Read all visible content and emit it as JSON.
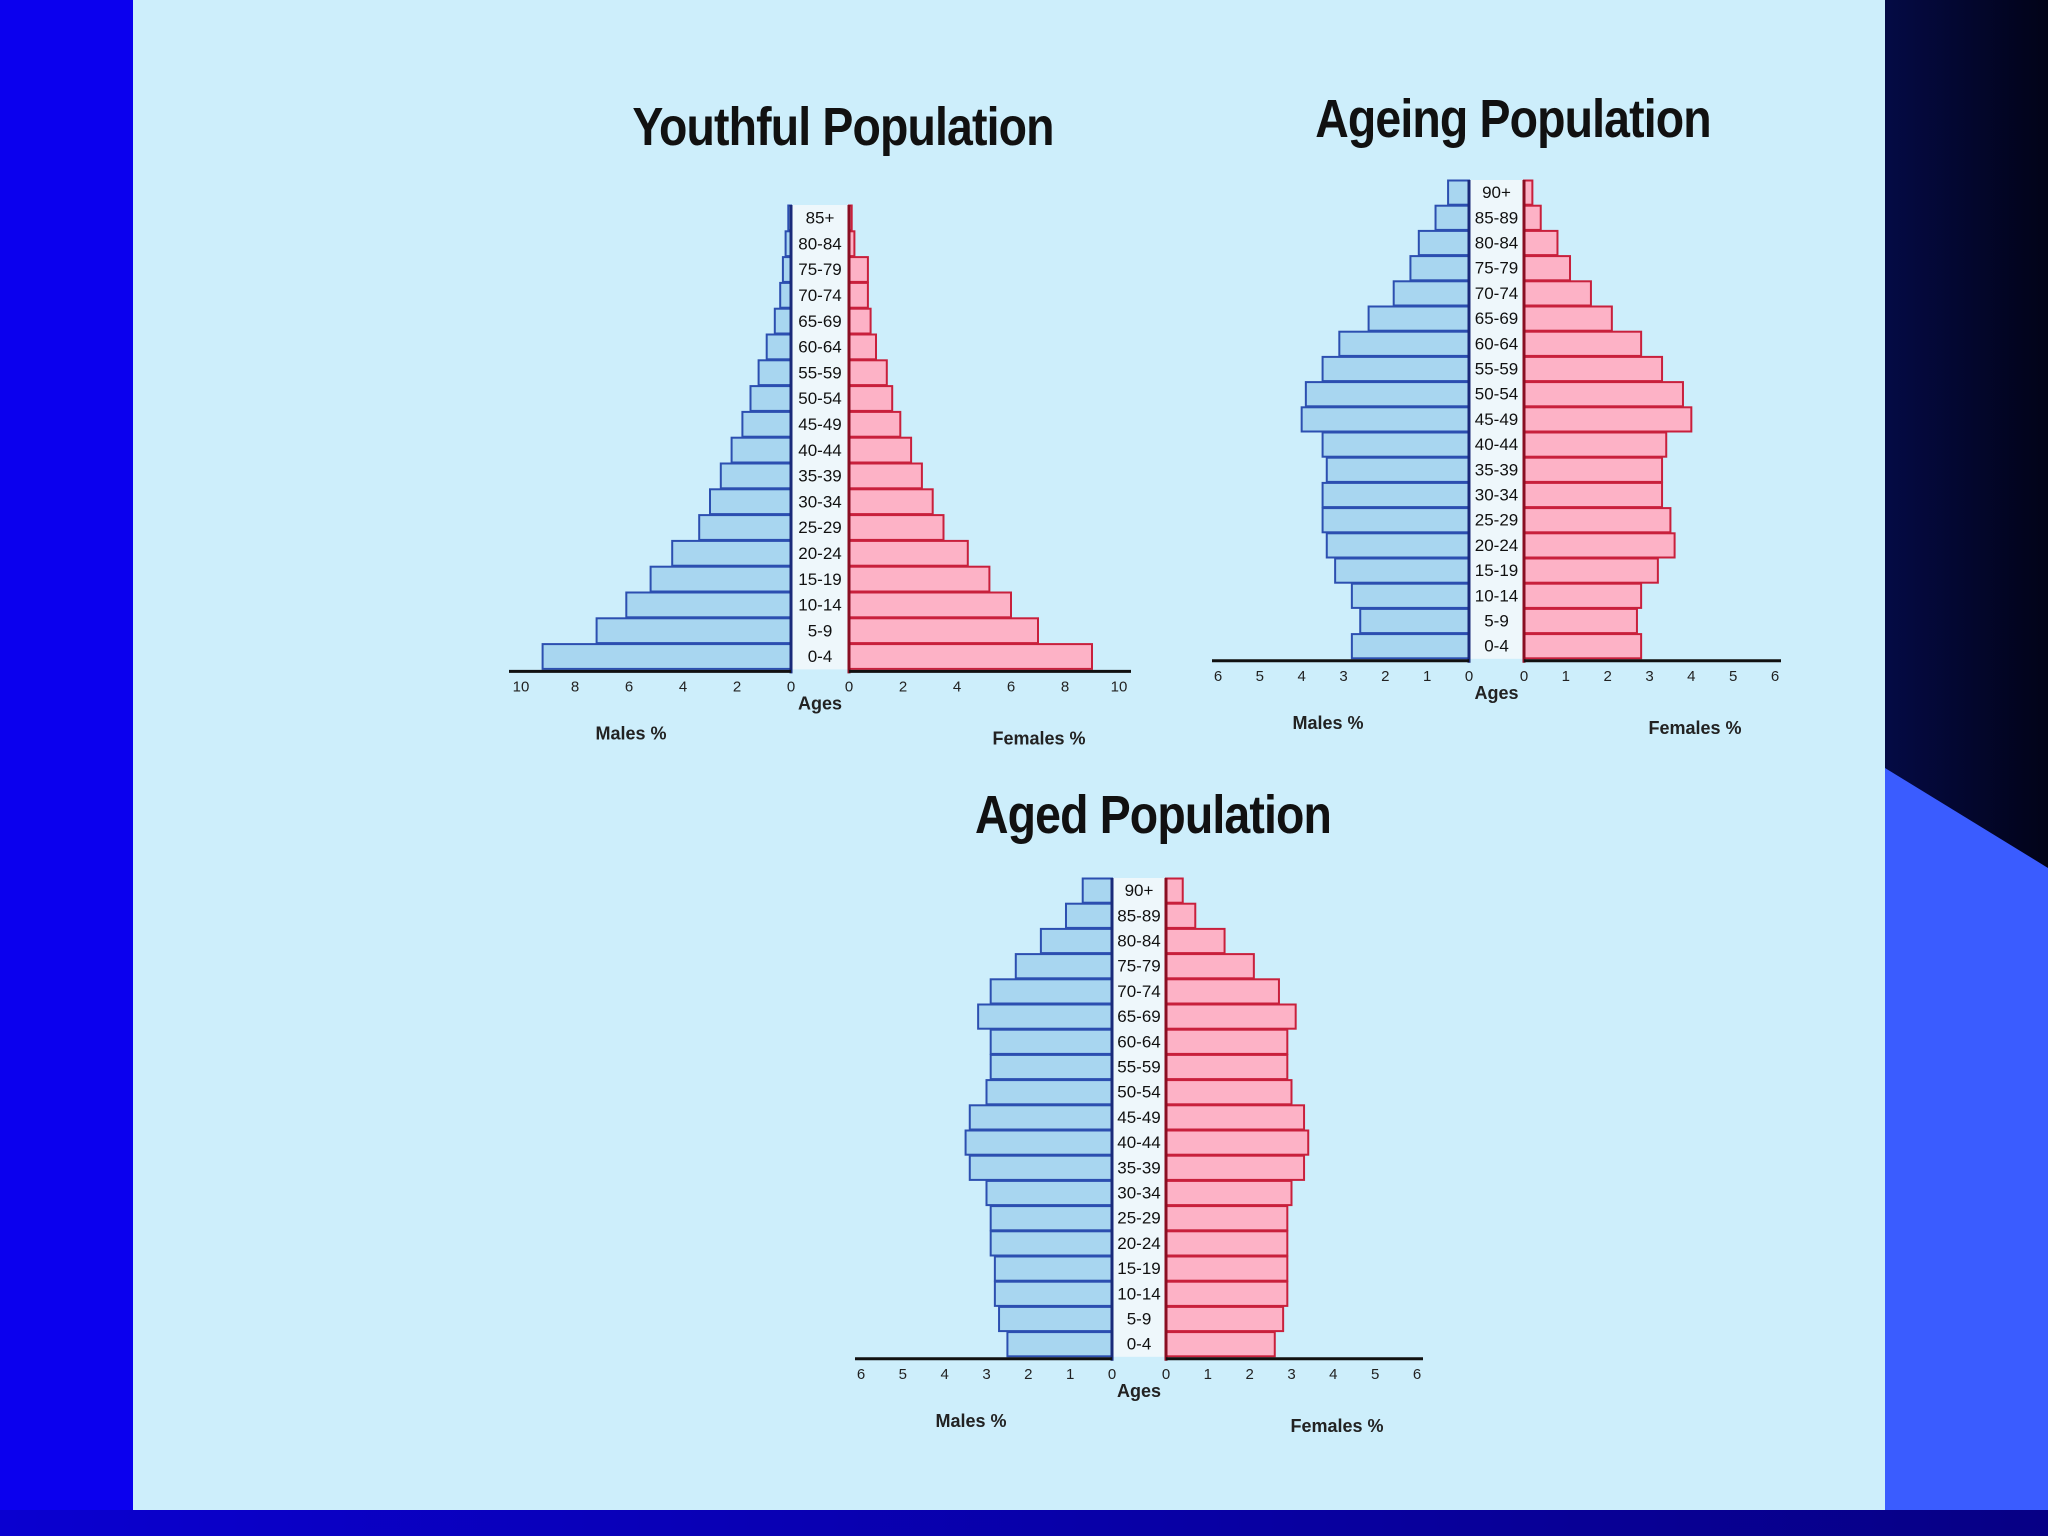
{
  "colors": {
    "background": "#0b00ee",
    "slide": "#cdeefb",
    "male_fill": "#a8d6f0",
    "male_stroke": "#2c4fb0",
    "female_fill": "#fdb2c6",
    "female_stroke": "#c8203c",
    "label_column": "#eef7fb"
  },
  "chart_data": [
    {
      "type": "bar",
      "title": "Youthful Population",
      "categories": [
        "85+",
        "80-84",
        "75-79",
        "70-74",
        "65-69",
        "60-64",
        "55-59",
        "50-54",
        "45-49",
        "40-44",
        "35-39",
        "30-34",
        "25-29",
        "20-24",
        "15-19",
        "10-14",
        "5-9",
        "0-4"
      ],
      "series": [
        {
          "name": "Males %",
          "values": [
            0.1,
            0.2,
            0.3,
            0.4,
            0.6,
            0.9,
            1.2,
            1.5,
            1.8,
            2.2,
            2.6,
            3.0,
            3.4,
            4.4,
            5.2,
            6.1,
            7.2,
            9.2
          ]
        },
        {
          "name": "Females %",
          "values": [
            0.1,
            0.2,
            0.7,
            0.7,
            0.8,
            1.0,
            1.4,
            1.6,
            1.9,
            2.3,
            2.7,
            3.1,
            3.5,
            4.4,
            5.2,
            6.0,
            7.0,
            9.0
          ]
        }
      ],
      "xlabel": "Ages",
      "male_axis_label": "Males %",
      "female_axis_label": "Females %",
      "xlim": [
        0,
        10
      ],
      "ticks": [
        "10",
        "8",
        "6",
        "4",
        "2",
        "0"
      ],
      "ticks_right": [
        "0",
        "2",
        "4",
        "6",
        "8",
        "10"
      ],
      "axis_word": "Ages"
    },
    {
      "type": "bar",
      "title": "Ageing Population",
      "categories": [
        "90+",
        "85-89",
        "80-84",
        "75-79",
        "70-74",
        "65-69",
        "60-64",
        "55-59",
        "50-54",
        "45-49",
        "40-44",
        "35-39",
        "30-34",
        "25-29",
        "20-24",
        "15-19",
        "10-14",
        "5-9",
        "0-4"
      ],
      "series": [
        {
          "name": "Males %",
          "values": [
            0.5,
            0.8,
            1.2,
            1.4,
            1.8,
            2.4,
            3.1,
            3.5,
            3.9,
            4.0,
            3.5,
            3.4,
            3.5,
            3.5,
            3.4,
            3.2,
            2.8,
            2.6,
            2.8
          ]
        },
        {
          "name": "Females %",
          "values": [
            0.2,
            0.4,
            0.8,
            1.1,
            1.6,
            2.1,
            2.8,
            3.3,
            3.8,
            4.0,
            3.4,
            3.3,
            3.3,
            3.5,
            3.6,
            3.2,
            2.8,
            2.7,
            2.8
          ]
        }
      ],
      "xlabel": "Ages",
      "male_axis_label": "Males %",
      "female_axis_label": "Females %",
      "xlim": [
        0,
        6
      ],
      "ticks": [
        "6",
        "5",
        "4",
        "3",
        "2",
        "1",
        "0"
      ],
      "ticks_right": [
        "0",
        "1",
        "2",
        "3",
        "4",
        "5",
        "6"
      ],
      "axis_word": "Ages"
    },
    {
      "type": "bar",
      "title": "Aged Population",
      "categories": [
        "90+",
        "85-89",
        "80-84",
        "75-79",
        "70-74",
        "65-69",
        "60-64",
        "55-59",
        "50-54",
        "45-49",
        "40-44",
        "35-39",
        "30-34",
        "25-29",
        "20-24",
        "15-19",
        "10-14",
        "5-9",
        "0-4"
      ],
      "series": [
        {
          "name": "Males %",
          "values": [
            0.7,
            1.1,
            1.7,
            2.3,
            2.9,
            3.2,
            2.9,
            2.9,
            3.0,
            3.4,
            3.5,
            3.4,
            3.0,
            2.9,
            2.9,
            2.8,
            2.8,
            2.7,
            2.5
          ]
        },
        {
          "name": "Females %",
          "values": [
            0.4,
            0.7,
            1.4,
            2.1,
            2.7,
            3.1,
            2.9,
            2.9,
            3.0,
            3.3,
            3.4,
            3.3,
            3.0,
            2.9,
            2.9,
            2.9,
            2.9,
            2.8,
            2.6
          ]
        }
      ],
      "xlabel": "Ages",
      "male_axis_label": "Males %",
      "female_axis_label": "Females %",
      "xlim": [
        0,
        6
      ],
      "ticks": [
        "6",
        "5",
        "4",
        "3",
        "2",
        "1",
        "0"
      ],
      "ticks_right": [
        "0",
        "1",
        "2",
        "3",
        "4",
        "5",
        "6"
      ],
      "axis_word": "Ages"
    }
  ]
}
